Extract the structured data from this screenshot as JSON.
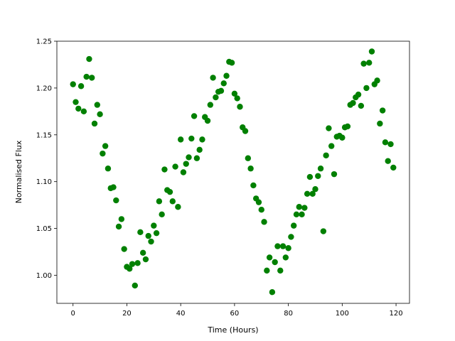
{
  "chart_data": {
    "type": "scatter",
    "title": "",
    "xlabel": "Time (Hours)",
    "ylabel": "Normalised Flux",
    "xlim": [
      -6,
      125
    ],
    "ylim": [
      0.97,
      1.25
    ],
    "xticks": [
      0,
      20,
      40,
      60,
      80,
      100,
      120
    ],
    "xtick_labels": [
      "0",
      "20",
      "40",
      "60",
      "80",
      "100",
      "120"
    ],
    "yticks": [
      1.0,
      1.05,
      1.1,
      1.15,
      1.2,
      1.25
    ],
    "ytick_labels": [
      "1.00",
      "1.05",
      "1.10",
      "1.15",
      "1.20",
      "1.25"
    ],
    "grid": false,
    "marker_color": "#008000",
    "series": [
      {
        "x": [
          0,
          1,
          2,
          3,
          4,
          5,
          6,
          7,
          8,
          9,
          10,
          11,
          12,
          13,
          14,
          15,
          16,
          17,
          18,
          19,
          20,
          21,
          22,
          23,
          24,
          25,
          26,
          27,
          28,
          29,
          30,
          31,
          32,
          33,
          34,
          35,
          36,
          37,
          38,
          39,
          40,
          41,
          42,
          43,
          44,
          45,
          46,
          47,
          48,
          49,
          50,
          51,
          52,
          53,
          54,
          55,
          56,
          57,
          58,
          59,
          60,
          61,
          62,
          63,
          64,
          65,
          66,
          67,
          68,
          69,
          70,
          71,
          72,
          73,
          74,
          75,
          76,
          77,
          78,
          79,
          80,
          81,
          82,
          83,
          84,
          85,
          86,
          87,
          88,
          89,
          90,
          91,
          92,
          93,
          94,
          95,
          96,
          97,
          98,
          99,
          100,
          101,
          102,
          103,
          104,
          105,
          106,
          107,
          108,
          109,
          110,
          111,
          112,
          113,
          114,
          115,
          116,
          117,
          118,
          119
        ],
        "y": [
          1.204,
          1.185,
          1.178,
          1.202,
          1.175,
          1.212,
          1.231,
          1.211,
          1.162,
          1.182,
          1.172,
          1.13,
          1.138,
          1.114,
          1.093,
          1.094,
          1.08,
          1.052,
          1.06,
          1.028,
          1.009,
          1.007,
          1.012,
          0.989,
          1.013,
          1.046,
          1.024,
          1.017,
          1.042,
          1.036,
          1.053,
          1.045,
          1.079,
          1.065,
          1.113,
          1.091,
          1.089,
          1.079,
          1.116,
          1.073,
          1.145,
          1.11,
          1.119,
          1.126,
          1.146,
          1.17,
          1.125,
          1.134,
          1.145,
          1.169,
          1.165,
          1.182,
          1.211,
          1.19,
          1.196,
          1.197,
          1.205,
          1.213,
          1.228,
          1.227,
          1.194,
          1.189,
          1.18,
          1.158,
          1.154,
          1.125,
          1.114,
          1.096,
          1.082,
          1.078,
          1.07,
          1.057,
          1.005,
          1.019,
          0.982,
          1.014,
          1.031,
          1.005,
          1.031,
          1.019,
          1.029,
          1.041,
          1.053,
          1.065,
          1.073,
          1.065,
          1.072,
          1.087,
          1.105,
          1.087,
          1.092,
          1.106,
          1.114,
          1.047,
          1.128,
          1.157,
          1.138,
          1.108,
          1.148,
          1.149,
          1.147,
          1.158,
          1.159,
          1.182,
          1.184,
          1.19,
          1.193,
          1.181,
          1.226,
          1.2,
          1.227,
          1.239,
          1.204,
          1.208,
          1.162,
          1.176,
          1.142,
          1.122,
          1.14,
          1.115
        ]
      }
    ]
  }
}
